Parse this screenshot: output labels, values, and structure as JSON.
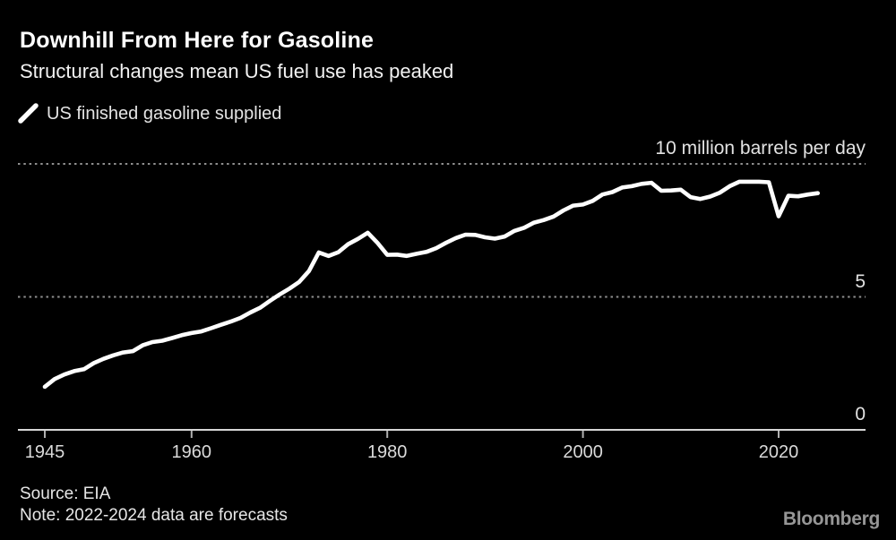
{
  "header": {
    "title": "Downhill From Here for Gasoline",
    "subtitle": "Structural changes mean US fuel use has peaked"
  },
  "legend": {
    "series_label": "US finished gasoline supplied"
  },
  "chart_data": {
    "type": "line",
    "title": "Downhill From Here for Gasoline",
    "subtitle": "Structural changes mean US fuel use has peaked",
    "unit_label": "10 million barrels per day",
    "xlabel": "",
    "ylabel": "million barrels per day",
    "ylim": [
      0,
      10.5
    ],
    "xlim": [
      1945,
      2024
    ],
    "grid": "dotted-horizontal",
    "legend_position": "top-left",
    "line_color": "#ffffff",
    "background": "#000000",
    "x": [
      1945,
      1946,
      1947,
      1948,
      1949,
      1950,
      1951,
      1952,
      1953,
      1954,
      1955,
      1956,
      1957,
      1958,
      1959,
      1960,
      1961,
      1962,
      1963,
      1964,
      1965,
      1966,
      1967,
      1968,
      1969,
      1970,
      1971,
      1972,
      1973,
      1974,
      1975,
      1976,
      1977,
      1978,
      1979,
      1980,
      1981,
      1982,
      1983,
      1984,
      1985,
      1986,
      1987,
      1988,
      1989,
      1990,
      1991,
      1992,
      1993,
      1994,
      1995,
      1996,
      1997,
      1998,
      1999,
      2000,
      2001,
      2002,
      2003,
      2004,
      2005,
      2006,
      2007,
      2008,
      2009,
      2010,
      2011,
      2012,
      2013,
      2014,
      2015,
      2016,
      2017,
      2018,
      2019,
      2020,
      2021,
      2022,
      2023,
      2024
    ],
    "series": [
      {
        "name": "US finished gasoline supplied",
        "values": [
          1.62,
          1.91,
          2.08,
          2.21,
          2.28,
          2.51,
          2.67,
          2.8,
          2.91,
          2.96,
          3.18,
          3.3,
          3.35,
          3.45,
          3.56,
          3.64,
          3.7,
          3.82,
          3.95,
          4.07,
          4.21,
          4.41,
          4.59,
          4.85,
          5.09,
          5.31,
          5.56,
          5.97,
          6.67,
          6.54,
          6.68,
          6.98,
          7.18,
          7.41,
          7.03,
          6.58,
          6.59,
          6.54,
          6.62,
          6.69,
          6.83,
          7.03,
          7.21,
          7.34,
          7.33,
          7.24,
          7.19,
          7.27,
          7.48,
          7.6,
          7.79,
          7.89,
          8.02,
          8.25,
          8.43,
          8.47,
          8.61,
          8.85,
          8.94,
          9.11,
          9.16,
          9.25,
          9.29,
          8.99,
          9.0,
          9.03,
          8.75,
          8.68,
          8.77,
          8.92,
          9.16,
          9.33,
          9.33,
          9.33,
          9.31,
          8.03,
          8.8,
          8.78,
          8.85,
          8.9
        ]
      }
    ],
    "yticks": [
      {
        "v": 0,
        "label": "0"
      },
      {
        "v": 5,
        "label": "5"
      },
      {
        "v": 10,
        "label": "10 million barrels per day"
      }
    ],
    "xticks": [
      {
        "v": 1945,
        "label": "1945"
      },
      {
        "v": 1960,
        "label": "1960"
      },
      {
        "v": 1980,
        "label": "1980"
      },
      {
        "v": 2000,
        "label": "2000"
      },
      {
        "v": 2020,
        "label": "2020"
      }
    ]
  },
  "footer": {
    "source": "Source: EIA",
    "note": "Note: 2022-2024 data are forecasts",
    "brand": "Bloomberg"
  }
}
